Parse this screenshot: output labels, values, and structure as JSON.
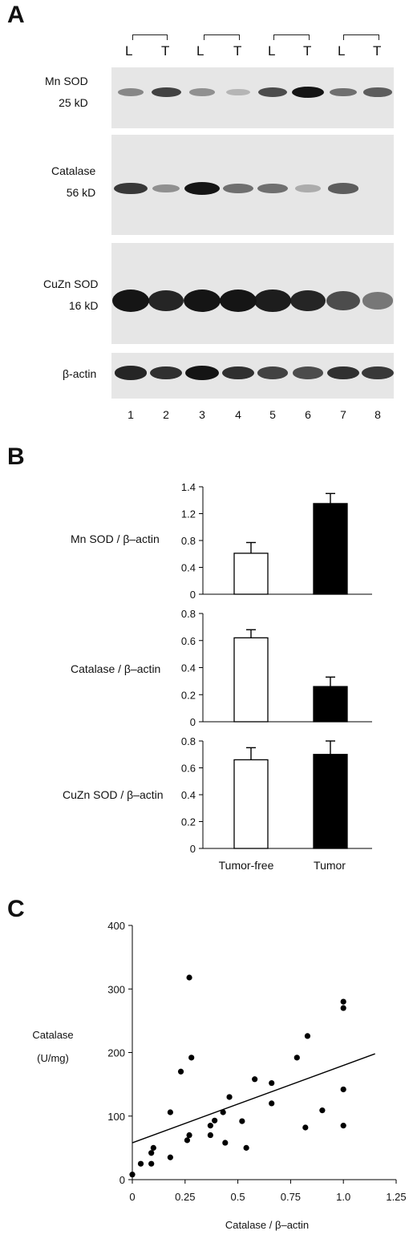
{
  "panels": {
    "a": "A",
    "b": "B",
    "c": "C"
  },
  "panel_a": {
    "lane_groups": [
      {
        "left": "L",
        "right": "T"
      },
      {
        "left": "L",
        "right": "T"
      },
      {
        "left": "L",
        "right": "T"
      },
      {
        "left": "L",
        "right": "T"
      }
    ],
    "lane_numbers": [
      "1",
      "2",
      "3",
      "4",
      "5",
      "6",
      "7",
      "8"
    ],
    "blots": [
      {
        "name": "Mn SOD",
        "size": "25 kD",
        "band_intensity": [
          0.35,
          0.75,
          0.3,
          0.1,
          0.7,
          1.0,
          0.5,
          0.6
        ]
      },
      {
        "name": "Catalase",
        "size": "56 kD",
        "band_intensity": [
          0.8,
          0.3,
          1.0,
          0.5,
          0.5,
          0.15,
          0.6,
          0.0
        ]
      },
      {
        "name": "CuZn SOD",
        "size": "16 kD",
        "band_intensity": [
          1.0,
          0.9,
          1.0,
          1.0,
          0.95,
          0.9,
          0.7,
          0.45
        ]
      },
      {
        "name": "β-actin",
        "size": "",
        "band_intensity": [
          0.9,
          0.85,
          1.0,
          0.85,
          0.75,
          0.7,
          0.85,
          0.8
        ]
      }
    ]
  },
  "chart_data": [
    {
      "type": "bar",
      "panel": "B",
      "ylabel": "Mn SOD / β–actin",
      "categories": [
        "Tumor-free",
        "Tumor"
      ],
      "values": [
        0.61,
        1.35
      ],
      "errors": [
        0.16,
        0.15
      ],
      "bar_fill": [
        "#ffffff",
        "#000000"
      ],
      "yticks": [
        "1.4",
        "1.2",
        "0.8",
        "0.4",
        "0"
      ],
      "ylim": [
        0,
        1.6
      ]
    },
    {
      "type": "bar",
      "panel": "B",
      "ylabel": "Catalase / β–actin",
      "categories": [
        "Tumor-free",
        "Tumor"
      ],
      "values": [
        0.62,
        0.26
      ],
      "errors": [
        0.06,
        0.07
      ],
      "bar_fill": [
        "#ffffff",
        "#000000"
      ],
      "yticks": [
        "0.8",
        "0.6",
        "0.4",
        "0.2",
        "0"
      ],
      "ylim": [
        0,
        0.8
      ]
    },
    {
      "type": "bar",
      "panel": "B",
      "ylabel": "CuZn SOD / β–actin",
      "categories": [
        "Tumor-free",
        "Tumor"
      ],
      "values": [
        0.66,
        0.7
      ],
      "errors": [
        0.09,
        0.1
      ],
      "bar_fill": [
        "#ffffff",
        "#000000"
      ],
      "yticks": [
        "0.8",
        "0.6",
        "0.4",
        "0.2",
        "0"
      ],
      "ylim": [
        0,
        0.8
      ]
    },
    {
      "type": "scatter",
      "panel": "C",
      "xlabel": "Catalase / β–actin",
      "ylabel": [
        "Catalase",
        "(U/mg)"
      ],
      "xlim": [
        0,
        1.25
      ],
      "ylim": [
        0,
        400
      ],
      "xticks": [
        "0",
        "0.25",
        "0.5",
        "0.75",
        "1.0",
        "1.25"
      ],
      "yticks": [
        "0",
        "100",
        "200",
        "300",
        "400"
      ],
      "points": [
        [
          0.0,
          8
        ],
        [
          0.04,
          25
        ],
        [
          0.09,
          25
        ],
        [
          0.09,
          42
        ],
        [
          0.1,
          50
        ],
        [
          0.18,
          35
        ],
        [
          0.18,
          106
        ],
        [
          0.23,
          170
        ],
        [
          0.26,
          62
        ],
        [
          0.27,
          70
        ],
        [
          0.27,
          318
        ],
        [
          0.28,
          192
        ],
        [
          0.37,
          70
        ],
        [
          0.37,
          85
        ],
        [
          0.39,
          93
        ],
        [
          0.43,
          106
        ],
        [
          0.44,
          58
        ],
        [
          0.46,
          130
        ],
        [
          0.52,
          92
        ],
        [
          0.54,
          50
        ],
        [
          0.58,
          158
        ],
        [
          0.66,
          120
        ],
        [
          0.66,
          152
        ],
        [
          0.78,
          192
        ],
        [
          0.82,
          82
        ],
        [
          0.83,
          226
        ],
        [
          0.9,
          109
        ],
        [
          1.0,
          142
        ],
        [
          1.0,
          270
        ],
        [
          1.0,
          280
        ],
        [
          1.0,
          85
        ]
      ],
      "fit_line": [
        [
          0.0,
          58
        ],
        [
          1.15,
          198
        ]
      ]
    }
  ]
}
